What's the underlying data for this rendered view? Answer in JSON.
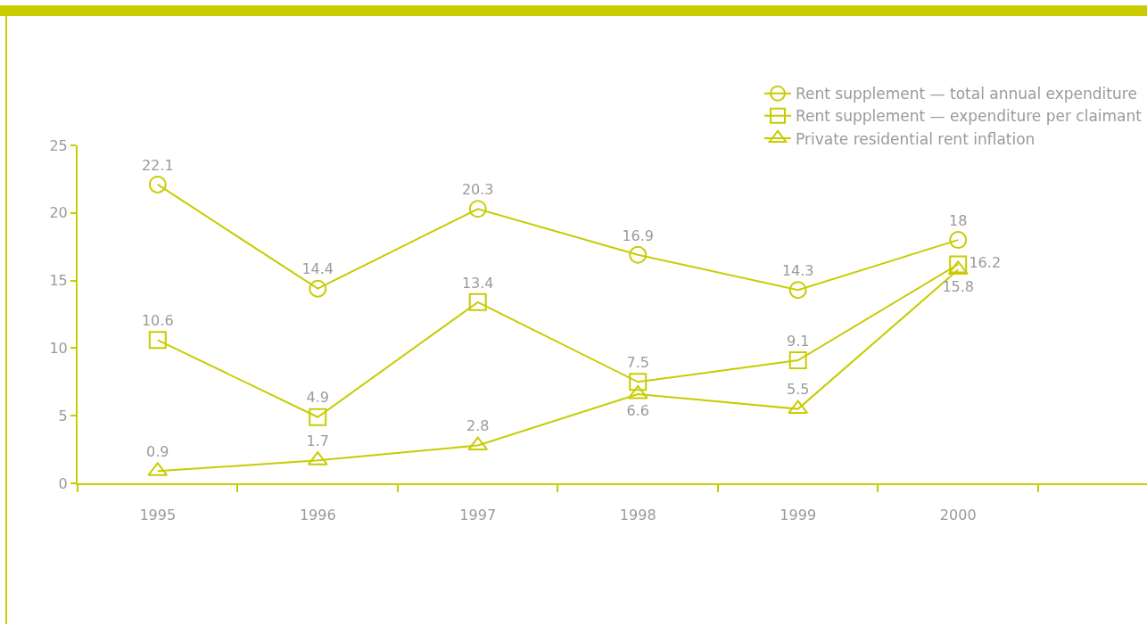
{
  "chart_data": {
    "type": "line",
    "categories": [
      "1995",
      "1996",
      "1997",
      "1998",
      "1999",
      "2000"
    ],
    "series": [
      {
        "name": "Rent supplement — total annual expenditure",
        "color": "#c8cc00",
        "marker": "circle",
        "values": [
          22.1,
          14.4,
          20.3,
          16.9,
          14.3,
          18
        ]
      },
      {
        "name": "Rent supplement — expenditure per claimant",
        "color": "#c8cc00",
        "marker": "square",
        "values": [
          10.6,
          4.9,
          13.4,
          7.5,
          9.1,
          16.2
        ]
      },
      {
        "name": "Private residential rent inflation",
        "color": "#c8cc00",
        "marker": "triangle",
        "values": [
          0.9,
          1.7,
          2.8,
          6.6,
          5.5,
          15.8
        ]
      }
    ],
    "ylim": [
      0,
      25
    ],
    "yticks": [
      0,
      5,
      10,
      15,
      20,
      25
    ],
    "grid": false,
    "legend": "top right",
    "data_labels": true,
    "line_style": "solid"
  }
}
